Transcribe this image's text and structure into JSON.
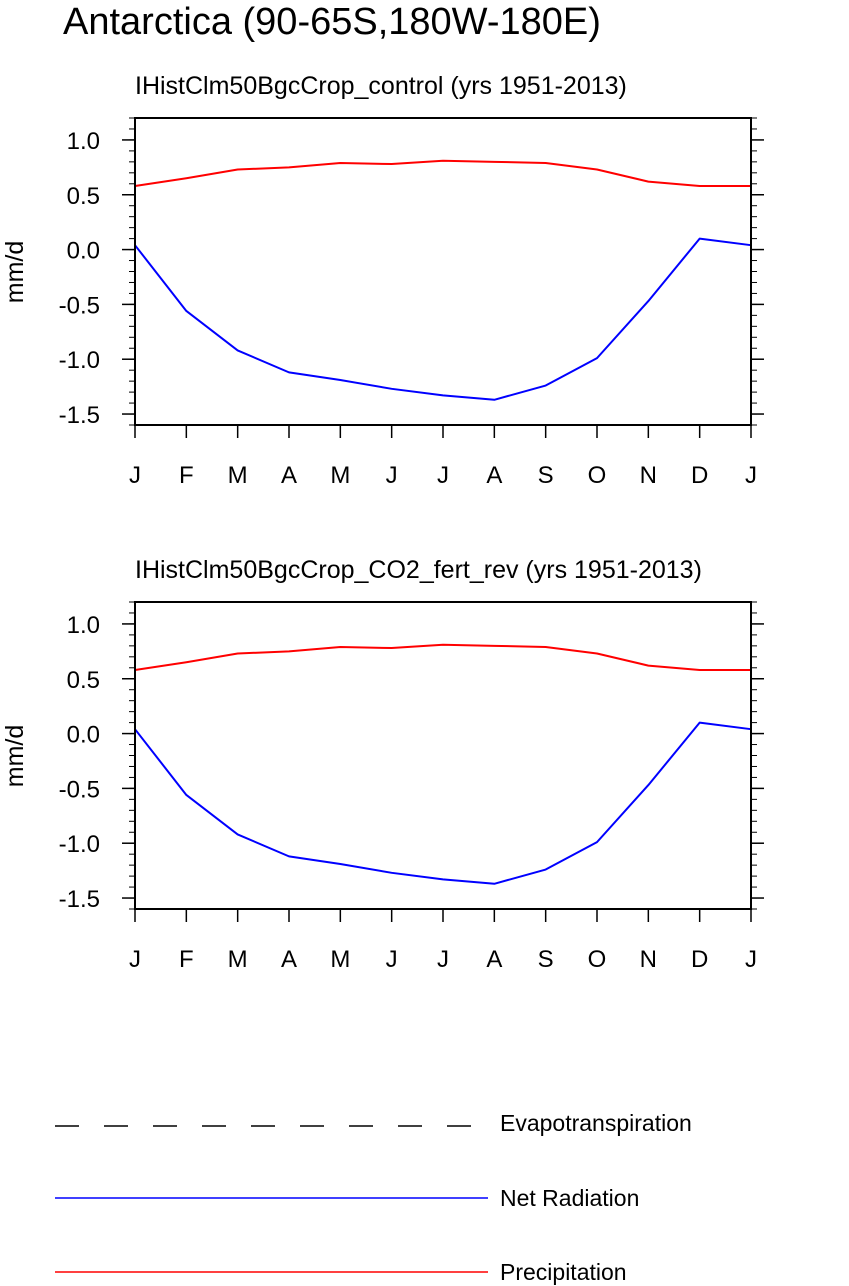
{
  "figure": {
    "title": "Antarctica (90-65S,180W-180E)"
  },
  "legend": {
    "items": [
      {
        "label": "Evapotranspiration",
        "color": "#000000",
        "style": "dashed"
      },
      {
        "label": "Net Radiation",
        "color": "#0000ff",
        "style": "solid"
      },
      {
        "label": "Precipitation",
        "color": "#ff0000",
        "style": "solid"
      }
    ]
  },
  "chart_data": [
    {
      "type": "line",
      "title": "IHistClm50BgcCrop_control (yrs 1951-2013)",
      "xlabel": "",
      "ylabel": "mm/d",
      "x": [
        "J",
        "F",
        "M",
        "A",
        "M",
        "J",
        "J",
        "A",
        "S",
        "O",
        "N",
        "D",
        "J"
      ],
      "ylim": [
        -1.6,
        1.2
      ],
      "yticks": [
        -1.5,
        -1.0,
        -0.5,
        0.0,
        0.5,
        1.0
      ],
      "ytick_labels": [
        "-1.5",
        "-1.0",
        "-0.5",
        "0.0",
        "0.5",
        "1.0"
      ],
      "grid": false,
      "series": [
        {
          "name": "Precipitation",
          "color": "#ff0000",
          "values": [
            0.58,
            0.65,
            0.73,
            0.75,
            0.79,
            0.78,
            0.81,
            0.8,
            0.79,
            0.73,
            0.62,
            0.58,
            0.58
          ]
        },
        {
          "name": "Net Radiation",
          "color": "#0000ff",
          "values": [
            0.04,
            -0.56,
            -0.92,
            -1.12,
            -1.19,
            -1.27,
            -1.33,
            -1.37,
            -1.24,
            -0.99,
            -0.47,
            0.1,
            0.04
          ]
        }
      ]
    },
    {
      "type": "line",
      "title": "IHistClm50BgcCrop_CO2_fert_rev (yrs 1951-2013)",
      "xlabel": "",
      "ylabel": "mm/d",
      "x": [
        "J",
        "F",
        "M",
        "A",
        "M",
        "J",
        "J",
        "A",
        "S",
        "O",
        "N",
        "D",
        "J"
      ],
      "ylim": [
        -1.6,
        1.2
      ],
      "yticks": [
        -1.5,
        -1.0,
        -0.5,
        0.0,
        0.5,
        1.0
      ],
      "ytick_labels": [
        "-1.5",
        "-1.0",
        "-0.5",
        "0.0",
        "0.5",
        "1.0"
      ],
      "grid": false,
      "series": [
        {
          "name": "Precipitation",
          "color": "#ff0000",
          "values": [
            0.58,
            0.65,
            0.73,
            0.75,
            0.79,
            0.78,
            0.81,
            0.8,
            0.79,
            0.73,
            0.62,
            0.58,
            0.58
          ]
        },
        {
          "name": "Net Radiation",
          "color": "#0000ff",
          "values": [
            0.04,
            -0.56,
            -0.92,
            -1.12,
            -1.19,
            -1.27,
            -1.33,
            -1.37,
            -1.24,
            -0.99,
            -0.47,
            0.1,
            0.04
          ]
        }
      ]
    }
  ]
}
